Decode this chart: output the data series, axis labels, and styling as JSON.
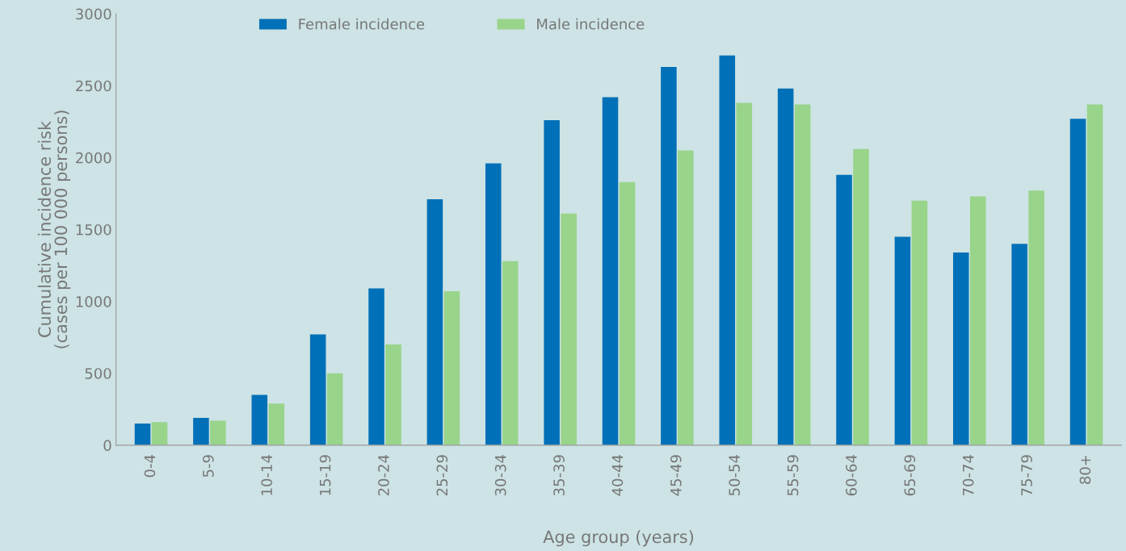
{
  "chart_data": {
    "type": "bar",
    "xlabel": "Age group (years)",
    "ylabel": "Cumulative incidence risk\n(cases per 100 000 persons)",
    "categories": [
      "0-4",
      "5-9",
      "10-14",
      "15-19",
      "20-24",
      "25-29",
      "30-34",
      "35-39",
      "40-44",
      "45-49",
      "50-54",
      "55-59",
      "60-64",
      "65-69",
      "70-74",
      "75-79",
      "80+"
    ],
    "series": [
      {
        "name": "Female incidence",
        "color": "#0070b8",
        "values": [
          150,
          190,
          350,
          770,
          1090,
          1710,
          1960,
          2260,
          2420,
          2630,
          2710,
          2480,
          1880,
          1450,
          1340,
          1400,
          2270
        ]
      },
      {
        "name": "Male incidence",
        "color": "#98d48a",
        "values": [
          160,
          170,
          290,
          500,
          700,
          1070,
          1280,
          1610,
          1830,
          2050,
          2380,
          2370,
          2060,
          1700,
          1730,
          1770,
          2370
        ]
      }
    ],
    "ylim": [
      0,
      3000
    ],
    "yticks": [
      0,
      500,
      1000,
      1500,
      2000,
      2500,
      3000
    ],
    "grid": false,
    "legend": "top left"
  }
}
